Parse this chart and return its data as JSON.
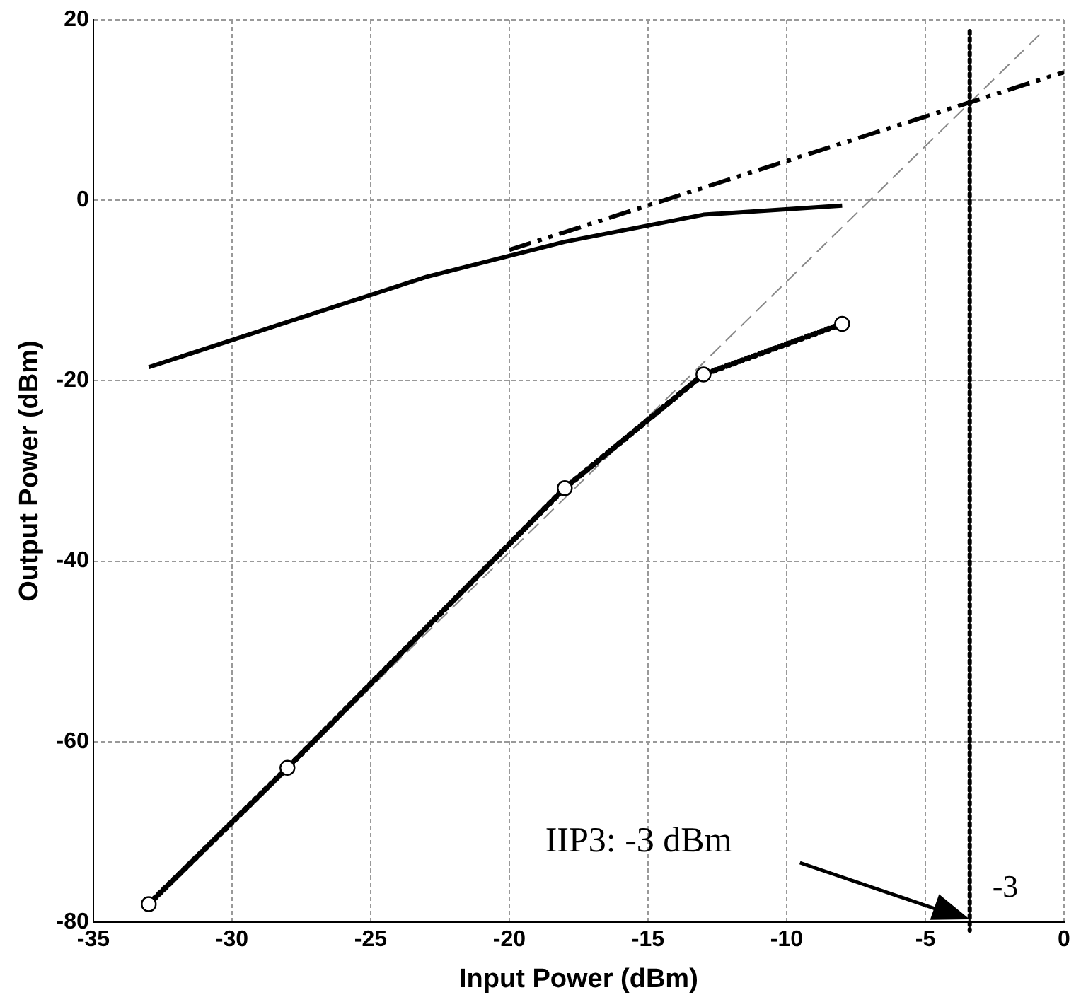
{
  "chart_data": {
    "type": "line",
    "xlabel": "Input Power (dBm)",
    "ylabel": "Output Power (dBm)",
    "xlim": [
      -35,
      0
    ],
    "xticks": [
      -35,
      -30,
      -25,
      -20,
      -15,
      -10,
      -5,
      0
    ],
    "ylim": [
      -80,
      20
    ],
    "yticks": [
      -80,
      -60,
      -40,
      -20,
      0,
      20
    ],
    "grid": true,
    "legend": false,
    "series": [
      {
        "color": "#000000",
        "line_style": "solid",
        "marker": "none",
        "x": [
          -33,
          -28,
          -23,
          -18,
          -13,
          -8
        ],
        "values": [
          -18.5,
          -13.5,
          -8.5,
          -4.6,
          -1.6,
          -0.6
        ]
      },
      {
        "color": "#000000",
        "line_style": "dashed",
        "marker": "none",
        "x": [
          -20,
          0
        ],
        "values": [
          -5.5,
          14.2
        ]
      },
      {
        "color": "#000000",
        "line_style": "dotted",
        "marker": "circle",
        "x": [
          -33,
          -28,
          -18,
          -13,
          -8
        ],
        "values": [
          -78,
          -62.9,
          -31.9,
          -19.3,
          -13.7
        ]
      },
      {
        "color": "#888888",
        "line_style": "dashed",
        "marker": "none",
        "x": [
          -33,
          -0.8
        ],
        "values": [
          -78,
          18.6
        ]
      }
    ],
    "ref_lines": [
      {
        "axis": "x",
        "value": -3.4,
        "label": "-3",
        "line_style": "dotted",
        "color": "#000000"
      }
    ],
    "annotations": [
      "IIP3: -3 dBm"
    ]
  }
}
